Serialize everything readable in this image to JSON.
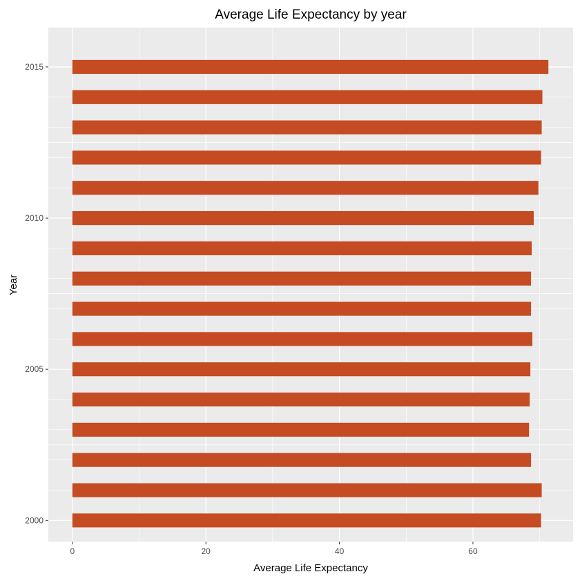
{
  "chart_data": {
    "type": "bar",
    "orientation": "horizontal",
    "title": "Average Life Expectancy by year",
    "xlabel": "Average Life Expectancy",
    "ylabel": "Year",
    "categories": [
      2000,
      2001,
      2002,
      2003,
      2004,
      2005,
      2006,
      2007,
      2008,
      2009,
      2010,
      2011,
      2012,
      2013,
      2014,
      2015
    ],
    "values": [
      70.2,
      70.3,
      68.7,
      68.4,
      68.5,
      68.6,
      68.9,
      68.7,
      68.7,
      68.8,
      69.1,
      69.8,
      70.2,
      70.3,
      70.4,
      71.3
    ],
    "xlim": [
      -3.6,
      75.0
    ],
    "ylim": [
      1999.3,
      2016.3
    ],
    "x_ticks": [
      0,
      20,
      40,
      60
    ],
    "y_ticks": [
      2000,
      2005,
      2010,
      2015
    ],
    "bar_color": "#c44b22",
    "panel_background": "#ebebeb",
    "grid": true,
    "legend": "none"
  }
}
